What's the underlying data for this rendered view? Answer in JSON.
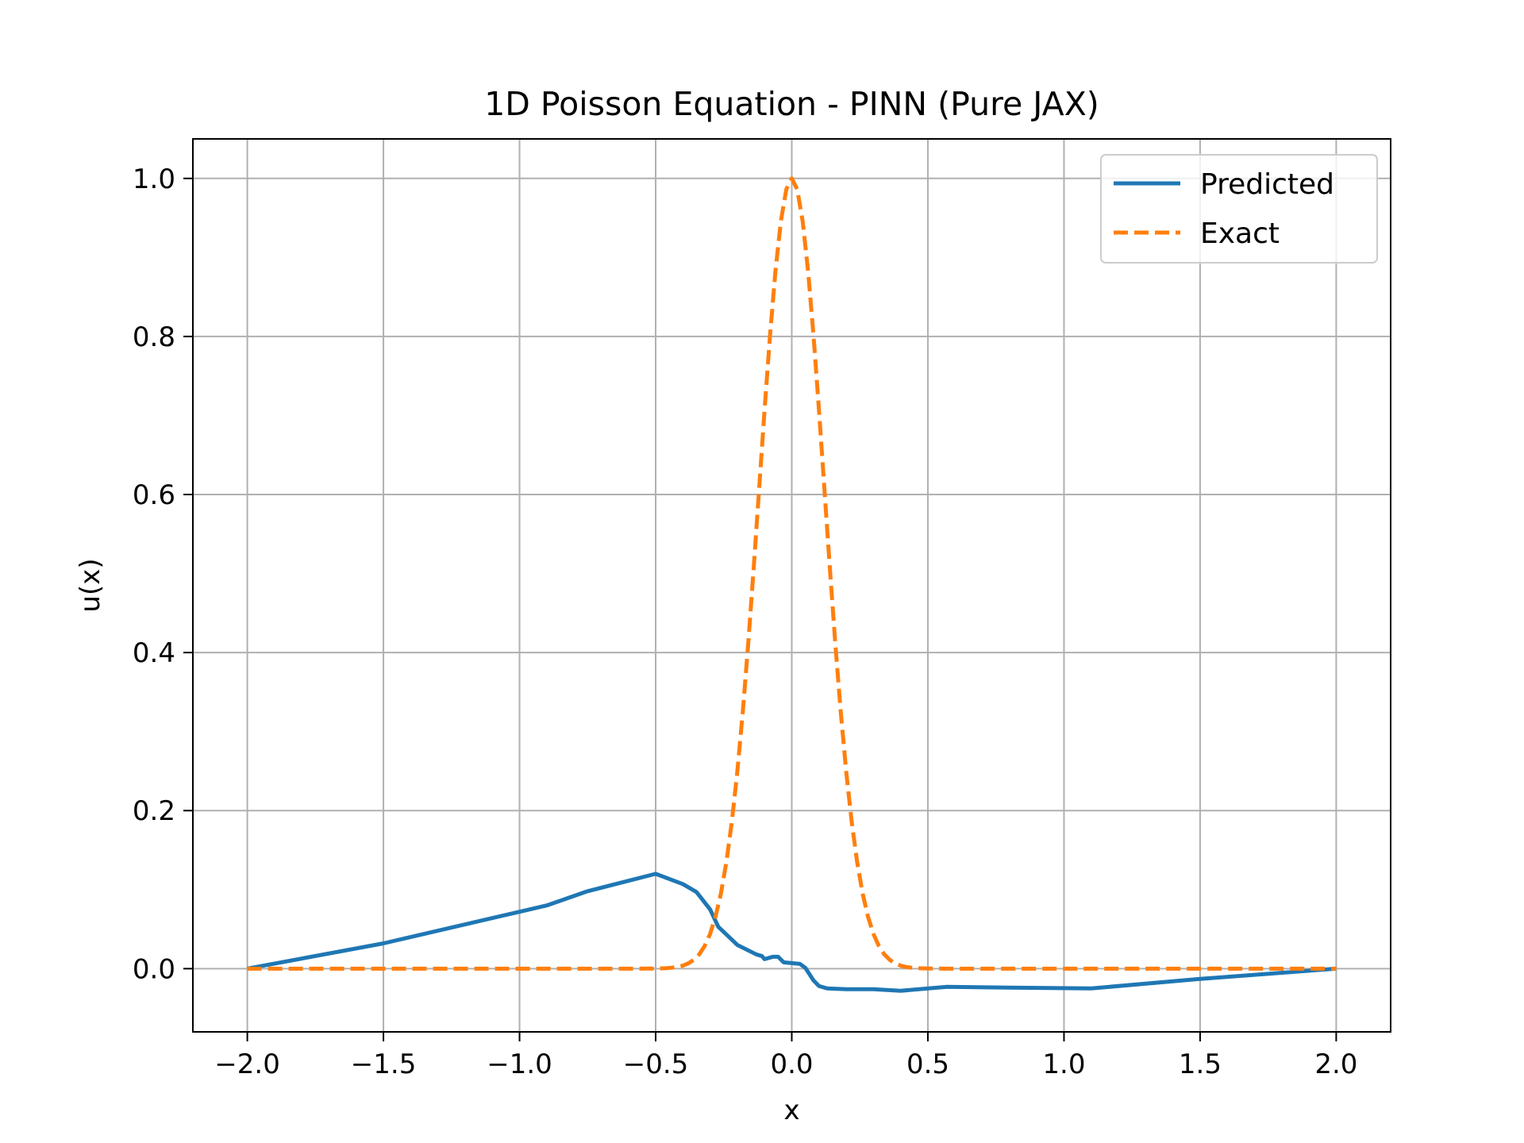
{
  "chart_data": {
    "type": "line",
    "title": "1D Poisson Equation - PINN (Pure JAX)",
    "xlabel": "x",
    "ylabel": "u(x)",
    "xlim": [
      -2.2,
      2.2
    ],
    "ylim": [
      -0.08,
      1.05
    ],
    "xticks": [
      -2.0,
      -1.5,
      -1.0,
      -0.5,
      0.0,
      0.5,
      1.0,
      1.5,
      2.0
    ],
    "xtick_labels": [
      "−2.0",
      "−1.5",
      "−1.0",
      "−0.5",
      "0.0",
      "0.5",
      "1.0",
      "1.5",
      "2.0"
    ],
    "yticks": [
      0.0,
      0.2,
      0.4,
      0.6,
      0.8,
      1.0
    ],
    "ytick_labels": [
      "0.0",
      "0.2",
      "0.4",
      "0.6",
      "0.8",
      "1.0"
    ],
    "grid": true,
    "legend_position": "top-right",
    "series": [
      {
        "name": "Predicted",
        "color": "#1f77b4",
        "style": "solid",
        "x": [
          -2.0,
          -1.5,
          -1.25,
          -1.0,
          -0.9,
          -0.75,
          -0.5,
          -0.4,
          -0.35,
          -0.3,
          -0.27,
          -0.2,
          -0.13,
          -0.11,
          -0.1,
          -0.07,
          -0.05,
          -0.03,
          0.0,
          0.03,
          0.05,
          0.08,
          0.1,
          0.13,
          0.2,
          0.3,
          0.4,
          0.57,
          0.8,
          1.1,
          1.5,
          2.0
        ],
        "y": [
          0.0,
          0.032,
          0.052,
          0.072,
          0.08,
          0.098,
          0.12,
          0.107,
          0.097,
          0.075,
          0.053,
          0.03,
          0.018,
          0.016,
          0.012,
          0.015,
          0.015,
          0.008,
          0.007,
          0.006,
          0.001,
          -0.015,
          -0.022,
          -0.025,
          -0.026,
          -0.026,
          -0.028,
          -0.023,
          -0.024,
          -0.025,
          -0.013,
          0.0
        ]
      },
      {
        "name": "Exact",
        "color": "#ff7f0e",
        "style": "dashed",
        "function": "exp(-x^2/(2*0.12^2))",
        "x_range": [
          -2.0,
          2.0
        ],
        "samples": 201
      }
    ]
  }
}
